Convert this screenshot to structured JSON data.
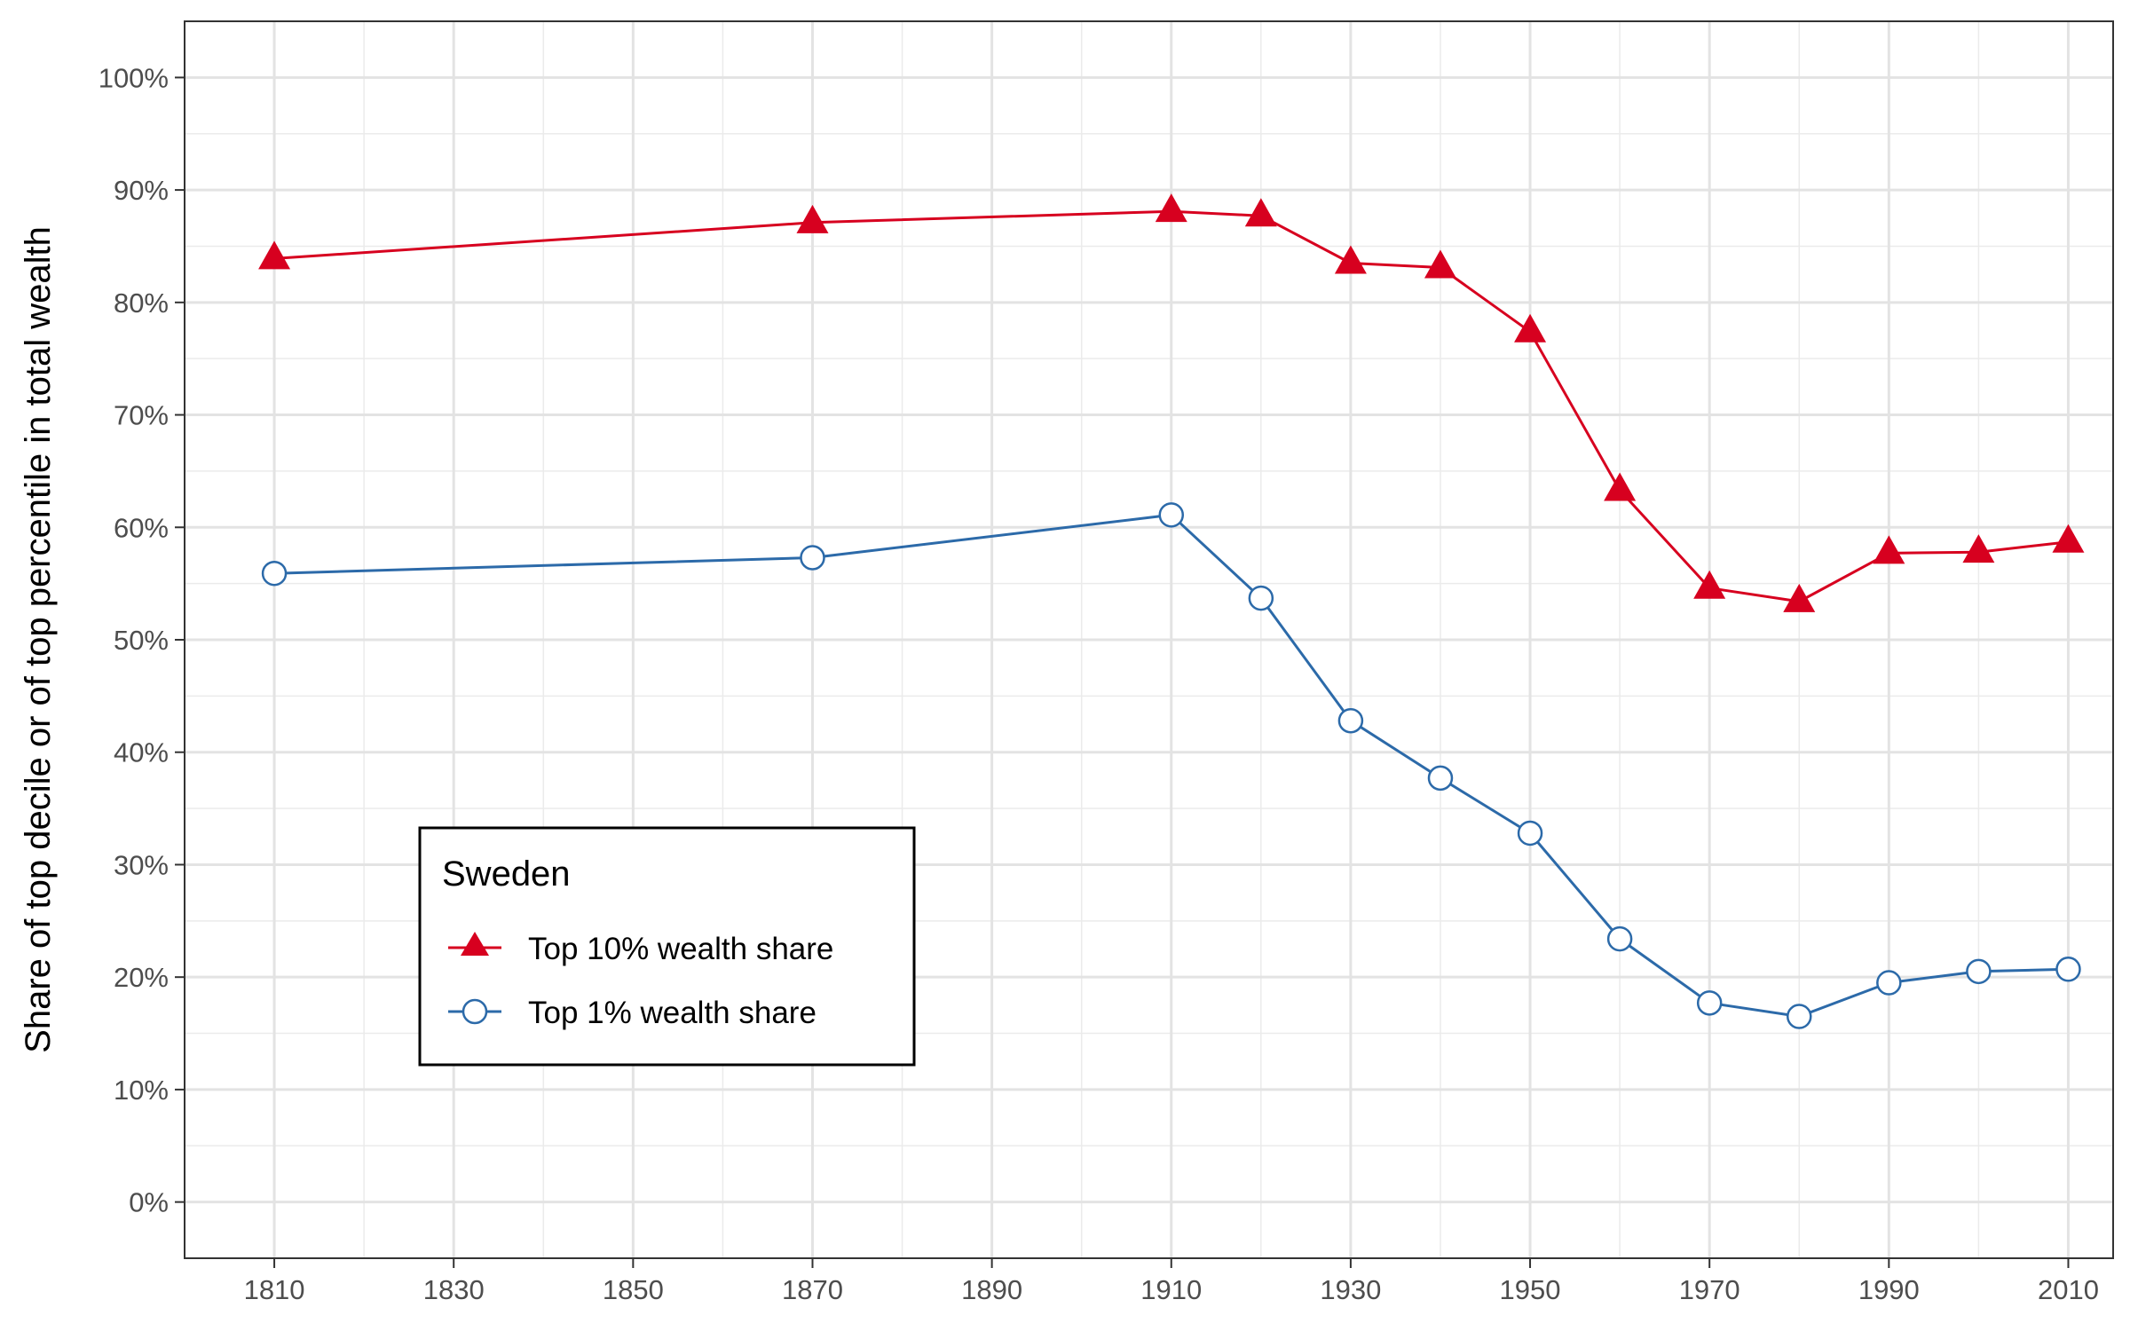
{
  "chart_data": {
    "type": "line",
    "title": "",
    "xlabel": "",
    "ylabel": "Share of top decile or of top percentile in total wealth",
    "xlim": [
      1800,
      2015
    ],
    "ylim": [
      -0.05,
      1.05
    ],
    "x_ticks": [
      1810,
      1830,
      1850,
      1870,
      1890,
      1910,
      1930,
      1950,
      1970,
      1990,
      2010
    ],
    "x_tick_labels": [
      "1810",
      "1830",
      "1850",
      "1870",
      "1890",
      "1910",
      "1930",
      "1950",
      "1970",
      "1990",
      "2010"
    ],
    "y_ticks": [
      0,
      0.1,
      0.2,
      0.3,
      0.4,
      0.5,
      0.6,
      0.7,
      0.8,
      0.9,
      1.0
    ],
    "y_tick_labels": [
      "0%",
      "10%",
      "20%",
      "30%",
      "40%",
      "50%",
      "60%",
      "70%",
      "80%",
      "90%",
      "100%"
    ],
    "grid": true,
    "legend": {
      "title": "Sweden",
      "position": "bottom-left"
    },
    "series": [
      {
        "name": "Top 10% wealth share",
        "color": "#d7001f",
        "marker": "filled-triangle",
        "x": [
          1810,
          1870,
          1910,
          1920,
          1930,
          1940,
          1950,
          1960,
          1970,
          1980,
          1990,
          2000,
          2010
        ],
        "y": [
          0.839,
          0.871,
          0.881,
          0.877,
          0.835,
          0.831,
          0.774,
          0.633,
          0.546,
          0.534,
          0.577,
          0.578,
          0.587
        ]
      },
      {
        "name": "Top 1% wealth share",
        "color": "#2c6aa9",
        "marker": "open-circle",
        "x": [
          1810,
          1870,
          1910,
          1920,
          1930,
          1940,
          1950,
          1960,
          1970,
          1980,
          1990,
          2000,
          2010
        ],
        "y": [
          0.559,
          0.573,
          0.611,
          0.537,
          0.428,
          0.377,
          0.328,
          0.234,
          0.177,
          0.165,
          0.195,
          0.205,
          0.207
        ]
      }
    ]
  }
}
